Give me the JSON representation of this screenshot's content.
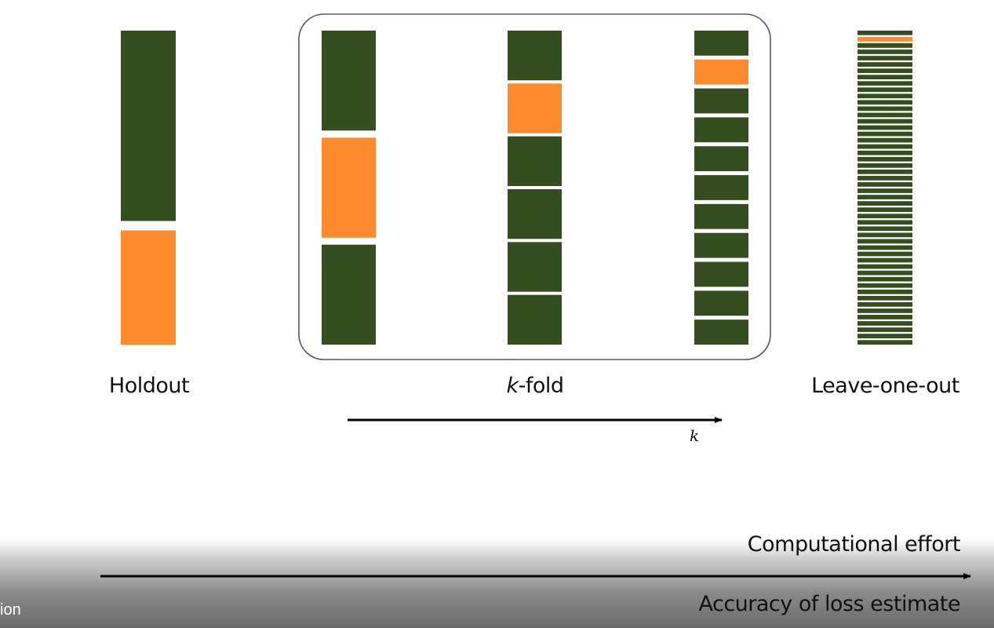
{
  "colors": {
    "train": "#344e1f",
    "test": "#fd8a2c",
    "frame": "#4d5a70",
    "arrow": "#000000"
  },
  "holdout": {
    "label": "Holdout",
    "segments": [
      "train",
      "test"
    ],
    "train_fraction": 0.625
  },
  "kfold": {
    "label_k": "k",
    "label_rest": "-fold",
    "arrow_label": "k",
    "columns": [
      {
        "k": 3,
        "test_index": 1
      },
      {
        "k": 6,
        "test_index": 1
      },
      {
        "k": 11,
        "test_index": 1
      }
    ]
  },
  "leave_one_out": {
    "label": "Leave-one-out",
    "strips": 50,
    "test_index": 1
  },
  "bottom": {
    "top_label": "Computational effort",
    "bottom_label": "Accuracy of loss estimate",
    "caption_fragment": "ion"
  }
}
